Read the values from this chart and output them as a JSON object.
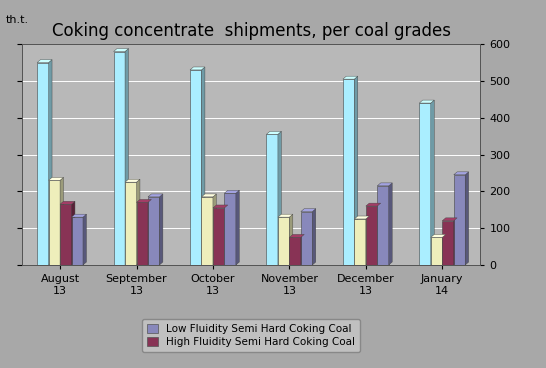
{
  "title": "Coking concentrate  shipments, per coal grades",
  "ylabel_left": "th.t.",
  "categories": [
    "August\n13",
    "September\n13",
    "October\n13",
    "November\n13",
    "December\n13",
    "January\n14"
  ],
  "series": {
    "Coking Concentrate Total": [
      550,
      580,
      530,
      355,
      505,
      440
    ],
    "Yellow (Soft Coking)": [
      230,
      225,
      185,
      130,
      125,
      75
    ],
    "High Fluidity Semi Hard Coking Coal": [
      165,
      170,
      155,
      75,
      160,
      120
    ],
    "Low Fluidity Semi Hard Coking Coal": [
      130,
      185,
      195,
      145,
      215,
      245
    ]
  },
  "colors": {
    "Coking Concentrate Total": "#aaeeff",
    "Yellow (Soft Coking)": "#eeeebb",
    "High Fluidity Semi Hard Coking Coal": "#883355",
    "Low Fluidity Semi Hard Coking Coal": "#8888bb"
  },
  "ylim": [
    0,
    600
  ],
  "yticks": [
    0,
    100,
    200,
    300,
    400,
    500,
    600
  ],
  "background_color": "#a8a8a8",
  "plot_bg_color": "#b8b8b8",
  "title_fontsize": 12,
  "bar_width": 0.15,
  "legend_items": [
    "Low Fluidity Semi Hard Coking Coal",
    "High Fluidity Semi Hard Coking Coal"
  ]
}
